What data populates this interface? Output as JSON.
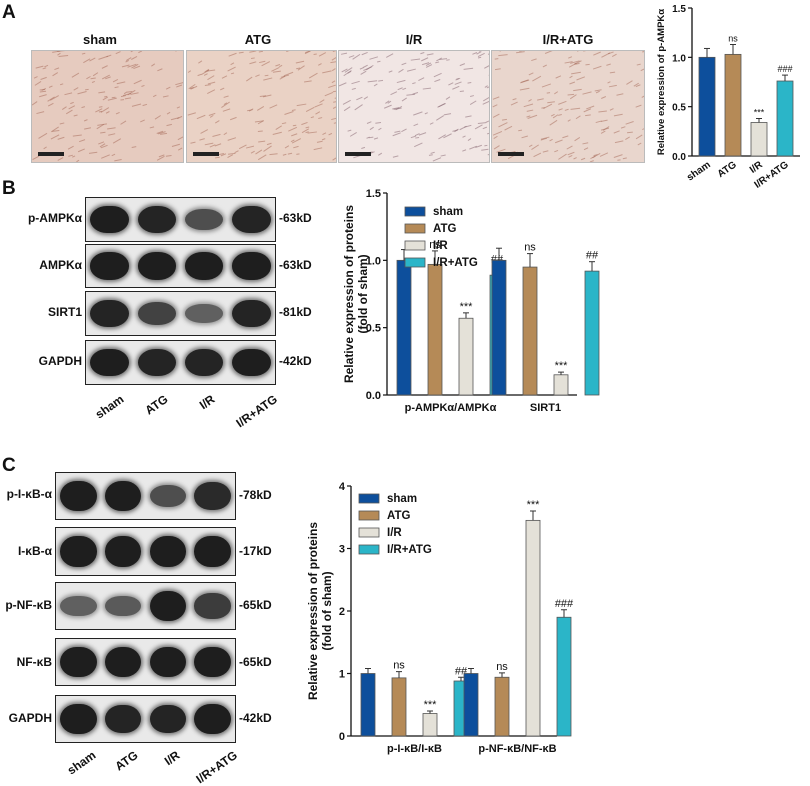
{
  "panels": {
    "a": "A",
    "b": "B",
    "c": "C"
  },
  "panel_a": {
    "titles": [
      "sham",
      "ATG",
      "I/R",
      "I/R+ATG"
    ],
    "tissue_colors": [
      "#e6cbbf",
      "#ead2c5",
      "#f1e6e4",
      "#e9d6cd"
    ]
  },
  "blot_b": {
    "rows": [
      {
        "label": "p-AMPKα",
        "kd": "-63kD",
        "intensity": [
          1.0,
          0.95,
          0.6,
          0.95
        ]
      },
      {
        "label": "AMPKα",
        "kd": "-63kD",
        "intensity": [
          1.0,
          1.0,
          1.0,
          1.0
        ]
      },
      {
        "label": "SIRT1",
        "kd": "-81kD",
        "intensity": [
          0.95,
          0.7,
          0.45,
          0.95
        ]
      },
      {
        "label": "GAPDH",
        "kd": "-42kD",
        "intensity": [
          1.0,
          0.95,
          0.95,
          1.0
        ]
      }
    ],
    "lanes": [
      "sham",
      "ATG",
      "I/R",
      "I/R+ATG"
    ]
  },
  "blot_c": {
    "rows": [
      {
        "label": "p-I-κB-α",
        "kd": "-78kD",
        "intensity": [
          1.0,
          1.0,
          0.6,
          0.9
        ]
      },
      {
        "label": "I-κB-α",
        "kd": "-17kD",
        "intensity": [
          1.0,
          1.0,
          1.0,
          1.0
        ]
      },
      {
        "label": "p-NF-κB",
        "kd": "-65kD",
        "intensity": [
          0.45,
          0.5,
          1.0,
          0.75
        ]
      },
      {
        "label": "NF-κB",
        "kd": "-65kD",
        "intensity": [
          1.0,
          1.0,
          1.0,
          1.0
        ]
      },
      {
        "label": "GAPDH",
        "kd": "-42kD",
        "intensity": [
          1.0,
          0.95,
          0.95,
          1.0
        ]
      }
    ],
    "lanes": [
      "sham",
      "ATG",
      "I/R",
      "I/R+ATG"
    ]
  },
  "chart_data": [
    {
      "type": "bar",
      "id": "a",
      "categories": [
        "sham",
        "ATG",
        "I/R",
        "I/R+ATG"
      ],
      "values": [
        1.0,
        1.03,
        0.34,
        0.76
      ],
      "errors": [
        0.09,
        0.1,
        0.04,
        0.06
      ],
      "annotations": [
        "",
        "ns",
        "***",
        "###"
      ],
      "colors": [
        "#0d4f9c",
        "#b58a57",
        "#e4e1d8",
        "#2bb5c8"
      ],
      "ylabel": "Relative expression of p-AMPKα",
      "ylim": [
        0,
        1.5
      ],
      "yticks": [
        "0.0",
        "0.5",
        "1.0",
        "1.5"
      ],
      "legend": "none"
    },
    {
      "type": "bar",
      "id": "b",
      "groups": [
        "p-AMPKα/AMPKα",
        "SIRT1"
      ],
      "series": [
        {
          "name": "sham",
          "color": "#0d4f9c",
          "values": [
            1.0,
            1.0
          ],
          "errors": [
            0.08,
            0.09
          ],
          "annotations": [
            "",
            ""
          ]
        },
        {
          "name": "ATG",
          "color": "#b58a57",
          "values": [
            0.97,
            0.95
          ],
          "errors": [
            0.1,
            0.1
          ],
          "annotations": [
            "ns",
            "ns"
          ]
        },
        {
          "name": "I/R",
          "color": "#e4e1d8",
          "values": [
            0.57,
            0.15
          ],
          "errors": [
            0.04,
            0.02
          ],
          "annotations": [
            "***",
            "***"
          ]
        },
        {
          "name": "I/R+ATG",
          "color": "#2bb5c8",
          "values": [
            0.89,
            0.92
          ],
          "errors": [
            0.07,
            0.07
          ],
          "annotations": [
            "##",
            "##"
          ]
        }
      ],
      "ylabel": "Relative expression of proteins",
      "ylabel2": "(fold of sham)",
      "ylim": [
        0,
        1.5
      ],
      "yticks": [
        "0.0",
        "0.5",
        "1.0",
        "1.5"
      ],
      "legend": "top"
    },
    {
      "type": "bar",
      "id": "c",
      "groups": [
        "p-I-κB/I-κB",
        "p-NF-κB/NF-κB"
      ],
      "series": [
        {
          "name": "sham",
          "color": "#0d4f9c",
          "values": [
            1.0,
            1.0
          ],
          "errors": [
            0.08,
            0.08
          ],
          "annotations": [
            "",
            ""
          ]
        },
        {
          "name": "ATG",
          "color": "#b58a57",
          "values": [
            0.93,
            0.94
          ],
          "errors": [
            0.1,
            0.07
          ],
          "annotations": [
            "ns",
            "ns"
          ]
        },
        {
          "name": "I/R",
          "color": "#e4e1d8",
          "values": [
            0.36,
            3.45
          ],
          "errors": [
            0.04,
            0.15
          ],
          "annotations": [
            "***",
            "***"
          ]
        },
        {
          "name": "I/R+ATG",
          "color": "#2bb5c8",
          "values": [
            0.88,
            1.9
          ],
          "errors": [
            0.06,
            0.12
          ],
          "annotations": [
            "##",
            "###"
          ]
        }
      ],
      "ylabel": "Relative expression of proteins",
      "ylabel2": "(fold of sham)",
      "ylim": [
        0,
        4
      ],
      "yticks": [
        "0",
        "1",
        "2",
        "3",
        "4"
      ],
      "legend": "top-left"
    }
  ]
}
